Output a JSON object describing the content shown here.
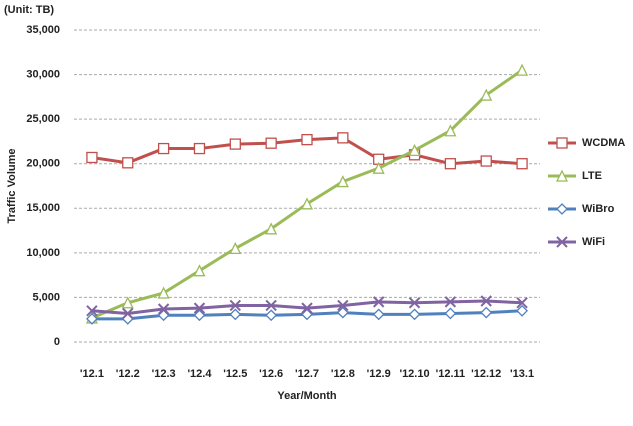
{
  "chart_data": {
    "type": "line",
    "unit_label": "(Unit: TB)",
    "y_label": "Traffic Volume",
    "x_label": "Year/Month",
    "categories": [
      "'12.1",
      "'12.2",
      "'12.3",
      "'12.4",
      "'12.5",
      "'12.6",
      "'12.7",
      "'12.8",
      "'12.9",
      "'12.10",
      "'12.11",
      "'12.12",
      "'13.1"
    ],
    "series": [
      {
        "name": "WCDMA",
        "color": "#c0504d",
        "marker": "square",
        "values": [
          20700,
          20100,
          21700,
          21700,
          22200,
          22300,
          22700,
          22900,
          20500,
          21000,
          20000,
          20300,
          20000
        ]
      },
      {
        "name": "LTE",
        "color": "#9bbb59",
        "marker": "triangle",
        "values": [
          2700,
          4400,
          5500,
          8000,
          10500,
          12700,
          15500,
          18000,
          19500,
          21500,
          23700,
          27700,
          30500
        ]
      },
      {
        "name": "WiBro",
        "color": "#4f81bd",
        "marker": "diamond",
        "values": [
          2600,
          2600,
          3000,
          3000,
          3100,
          3000,
          3100,
          3300,
          3100,
          3100,
          3200,
          3300,
          3500
        ]
      },
      {
        "name": "WiFi",
        "color": "#8064a2",
        "marker": "x",
        "values": [
          3500,
          3200,
          3700,
          3800,
          4100,
          4100,
          3800,
          4100,
          4500,
          4400,
          4500,
          4600,
          4400
        ]
      }
    ],
    "ylim": [
      0,
      35000
    ],
    "yticks": [
      0,
      {
        "value": 5000,
        "label": "5,000"
      },
      {
        "value": 10000,
        "label": "10,000"
      },
      {
        "value": 15000,
        "label": "15,000"
      },
      {
        "value": 20000,
        "label": "20,000"
      },
      {
        "value": 25000,
        "label": "25,000"
      },
      {
        "value": 30000,
        "label": "30,000"
      },
      {
        "value": 35000,
        "label": "35,000"
      }
    ],
    "grid": true,
    "legend": "right"
  }
}
